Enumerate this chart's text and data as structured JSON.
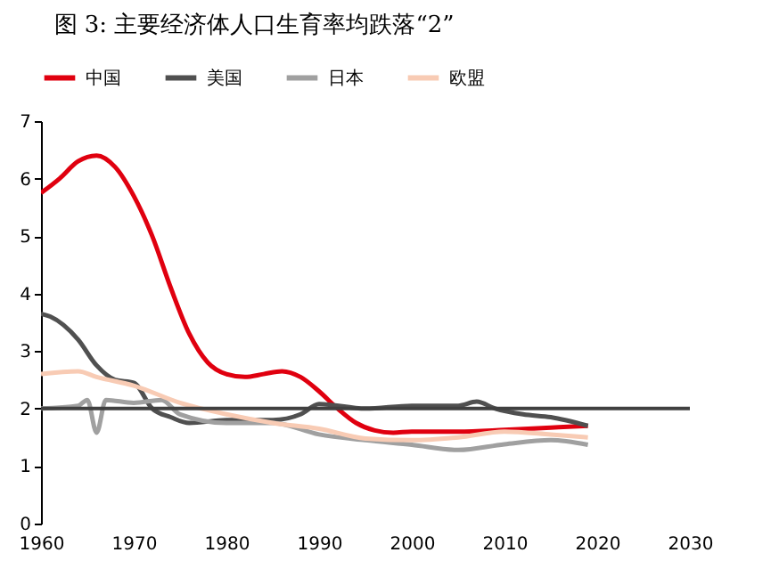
{
  "chart_data": {
    "type": "line",
    "title": "图 3:     主要经济体人口生育率均跌落“2”",
    "xlim": [
      1960,
      2030
    ],
    "xticks": [
      1960,
      1970,
      1980,
      1990,
      2000,
      2010,
      2020,
      2030
    ],
    "ylim": [
      0,
      7
    ],
    "yticks": [
      0,
      1,
      2,
      3,
      4,
      5,
      6,
      7
    ],
    "grid": false,
    "legend": "top",
    "line_style": "solid",
    "ref_lines": [
      {
        "axis": "y",
        "value": 2,
        "color": "#404040"
      }
    ],
    "series": [
      {
        "name": "中国",
        "color": "#e0000f",
        "x": [
          1960,
          1962,
          1964,
          1966,
          1968,
          1970,
          1972,
          1974,
          1976,
          1978,
          1980,
          1982,
          1984,
          1986,
          1988,
          1990,
          1992,
          1994,
          1996,
          1998,
          2000,
          2005,
          2010,
          2015,
          2019
        ],
        "values": [
          5.75,
          6.0,
          6.3,
          6.4,
          6.2,
          5.7,
          5.0,
          4.1,
          3.3,
          2.8,
          2.6,
          2.55,
          2.6,
          2.65,
          2.55,
          2.3,
          2.0,
          1.75,
          1.62,
          1.58,
          1.6,
          1.6,
          1.63,
          1.67,
          1.7
        ]
      },
      {
        "name": "美国",
        "color": "#505050",
        "x": [
          1960,
          1961,
          1964,
          1966,
          1968,
          1970,
          1972,
          1974,
          1976,
          1980,
          1985,
          1988,
          1990,
          1995,
          2000,
          2005,
          2007,
          2009,
          2012,
          2015,
          2019
        ],
        "values": [
          3.65,
          3.6,
          3.2,
          2.75,
          2.5,
          2.45,
          2.0,
          1.85,
          1.75,
          1.8,
          1.8,
          1.9,
          2.08,
          2.0,
          2.05,
          2.05,
          2.12,
          2.0,
          1.9,
          1.85,
          1.7
        ]
      },
      {
        "name": "日本",
        "color": "#a0a0a0",
        "x": [
          1960,
          1964,
          1965,
          1966,
          1967,
          1970,
          1973,
          1975,
          1980,
          1985,
          1990,
          1995,
          2000,
          2005,
          2010,
          2015,
          2019
        ],
        "values": [
          2.0,
          2.05,
          2.15,
          1.58,
          2.15,
          2.1,
          2.15,
          1.9,
          1.75,
          1.75,
          1.55,
          1.45,
          1.37,
          1.28,
          1.38,
          1.45,
          1.37
        ]
      },
      {
        "name": "欧盟",
        "color": "#f8cbb4",
        "x": [
          1960,
          1964,
          1966,
          1970,
          1975,
          1980,
          1985,
          1990,
          1995,
          2000,
          2005,
          2010,
          2015,
          2019
        ],
        "values": [
          2.6,
          2.65,
          2.55,
          2.4,
          2.1,
          1.9,
          1.75,
          1.65,
          1.48,
          1.45,
          1.5,
          1.6,
          1.55,
          1.5
        ]
      }
    ]
  }
}
